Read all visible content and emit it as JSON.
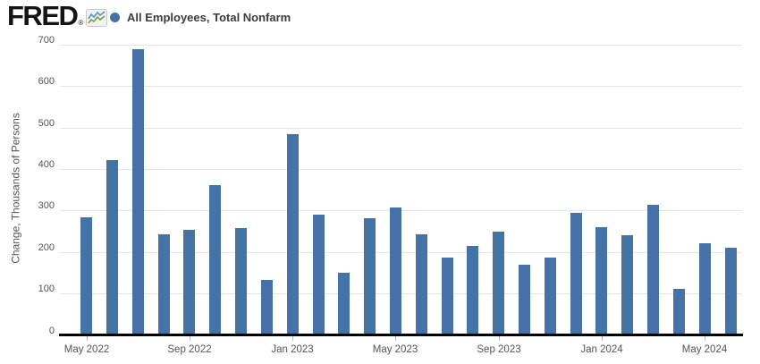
{
  "header": {
    "logo_text": "FRED",
    "registered_mark": "®",
    "sparkline_icon": "fred-sparkline-icon",
    "legend": {
      "label": "All Employees, Total Nonfarm",
      "marker_color": "#4572a7"
    }
  },
  "colors": {
    "bar": "#4572a7",
    "gridline": "#e6e6e6",
    "axis_line": "#000000",
    "tick_mark": "#a9bdd6",
    "axis_text": "#555555",
    "legend_text": "#3c3c3c",
    "background": "#ffffff"
  },
  "chart_data": {
    "type": "bar",
    "title": "",
    "xlabel": "",
    "ylabel": "Change, Thousands of Persons",
    "ylim": [
      0,
      700
    ],
    "yticks": [
      0,
      100,
      200,
      300,
      400,
      500,
      600,
      700
    ],
    "grid": true,
    "legend_position": "top-left",
    "x_axis_labeled_ticks": [
      "May 2022",
      "Sep 2022",
      "Jan 2023",
      "May 2023",
      "Sep 2023",
      "Jan 2024",
      "May 2024"
    ],
    "categories": [
      "May 2022",
      "Jun 2022",
      "Jul 2022",
      "Aug 2022",
      "Sep 2022",
      "Oct 2022",
      "Nov 2022",
      "Dec 2022",
      "Jan 2023",
      "Feb 2023",
      "Mar 2023",
      "Apr 2023",
      "May 2023",
      "Jun 2023",
      "Jul 2023",
      "Aug 2023",
      "Sep 2023",
      "Oct 2023",
      "Nov 2023",
      "Dec 2023",
      "Jan 2024",
      "Feb 2024",
      "Mar 2024",
      "Apr 2024",
      "May 2024",
      "Jun 2024"
    ],
    "series": [
      {
        "name": "All Employees, Total Nonfarm",
        "color": "#4572a7",
        "values": [
          281,
          417,
          685,
          240,
          250,
          358,
          255,
          130,
          480,
          287,
          146,
          278,
          303,
          240,
          184,
          210,
          246,
          165,
          182,
          290,
          256,
          236,
          310,
          108,
          218,
          206
        ]
      }
    ]
  }
}
